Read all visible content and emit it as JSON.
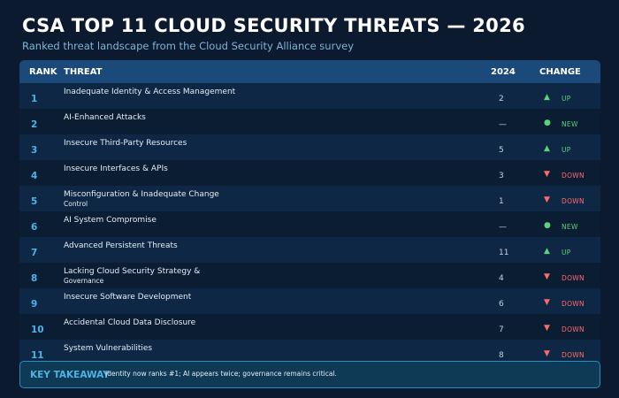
{
  "header": {
    "title": "CSA TOP 11 CLOUD SECURITY THREATS — 2026",
    "subtitle": "Ranked threat landscape from the Cloud Security Alliance survey"
  },
  "table": {
    "columns": {
      "rank": "RANK",
      "threat": "THREAT",
      "prior": "2024",
      "change": "CHANGE"
    },
    "rows": [
      {
        "rank": "1",
        "threat": "Inadequate Identity & Access Management",
        "threat_sub": "",
        "prior": "2",
        "change": "UP",
        "icon": "up-arrow-icon"
      },
      {
        "rank": "2",
        "threat": "AI-Enhanced Attacks",
        "threat_sub": "",
        "prior": "—",
        "change": "NEW",
        "icon": "new-dot-icon"
      },
      {
        "rank": "3",
        "threat": "Insecure Third-Party Resources",
        "threat_sub": "",
        "prior": "5",
        "change": "UP",
        "icon": "up-arrow-icon"
      },
      {
        "rank": "4",
        "threat": "Insecure Interfaces & APIs",
        "threat_sub": "",
        "prior": "3",
        "change": "DOWN",
        "icon": "down-arrow-icon"
      },
      {
        "rank": "5",
        "threat": "Misconfiguration & Inadequate Change",
        "threat_sub": "Control",
        "prior": "1",
        "change": "DOWN",
        "icon": "down-arrow-icon"
      },
      {
        "rank": "6",
        "threat": "AI System Compromise",
        "threat_sub": "",
        "prior": "—",
        "change": "NEW",
        "icon": "new-dot-icon"
      },
      {
        "rank": "7",
        "threat": "Advanced Persistent Threats",
        "threat_sub": "",
        "prior": "11",
        "change": "UP",
        "icon": "up-arrow-icon"
      },
      {
        "rank": "8",
        "threat": "Lacking Cloud Security Strategy &",
        "threat_sub": "Governance",
        "prior": "4",
        "change": "DOWN",
        "icon": "down-arrow-icon"
      },
      {
        "rank": "9",
        "threat": "Insecure Software Development",
        "threat_sub": "",
        "prior": "6",
        "change": "DOWN",
        "icon": "down-arrow-icon"
      },
      {
        "rank": "10",
        "threat": "Accidental Cloud Data Disclosure",
        "threat_sub": "",
        "prior": "7",
        "change": "DOWN",
        "icon": "down-arrow-icon"
      },
      {
        "rank": "11",
        "threat": "System Vulnerabilities",
        "threat_sub": "",
        "prior": "8",
        "change": "DOWN",
        "icon": "down-arrow-icon"
      }
    ]
  },
  "takeaway": {
    "label": "KEY TAKEAWAY",
    "text": "Identity now ranks #1; AI appears twice; governance remains critical."
  },
  "colors": {
    "up": "#5dd27a",
    "new": "#5dd27a",
    "down": "#ff6b6b",
    "accent": "#4db3e6",
    "background": "#0b1a2e"
  },
  "icons": {
    "up-arrow-icon": "▲",
    "down-arrow-icon": "▼",
    "new-dot-icon": "●"
  }
}
